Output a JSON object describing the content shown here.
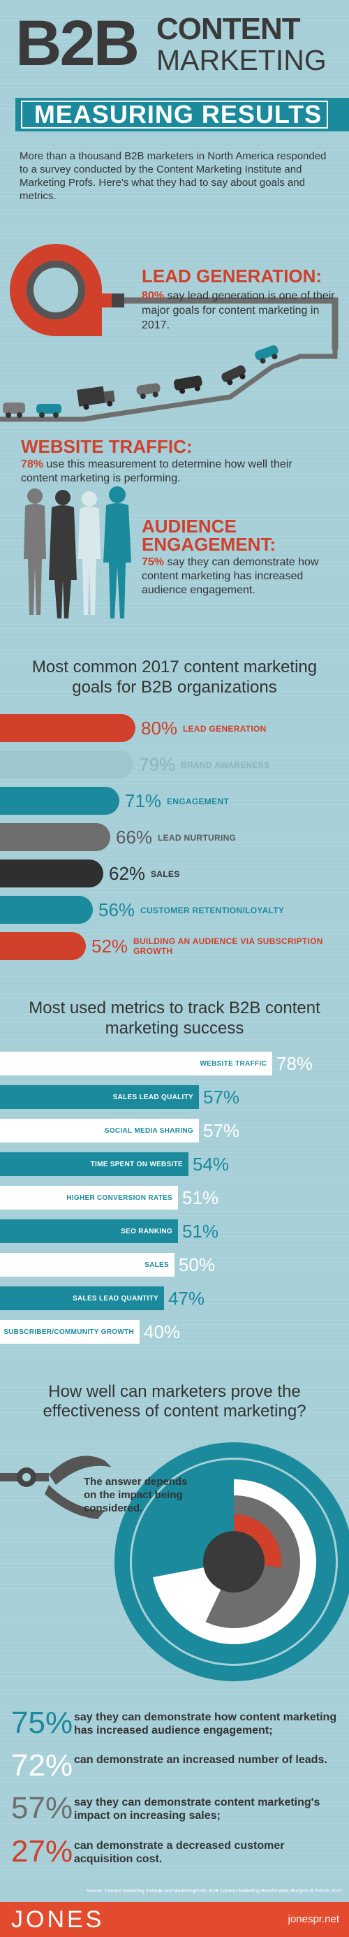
{
  "header": {
    "b2b": "B2B",
    "content": "CONTENT",
    "marketing": "MARKETING",
    "measuring": "MEASURING RESULTS",
    "intro": "More than a thousand B2B marketers in North America responded to a survey conducted by the Content Marketing Institute and Marketing Profs. Here's what they had to say about goals and metrics."
  },
  "lead": {
    "title": "LEAD GENERATION:",
    "pct": "80%",
    "text": " say lead generation is one of their major goals for content marketing in 2017."
  },
  "web": {
    "title": "WEBSITE TRAFFIC:",
    "pct": "78%",
    "text": " use this measurement to determine how well their content marketing is performing."
  },
  "audience": {
    "title": "AUDIENCE ENGAGEMENT:",
    "pct": "75%",
    "text": " say they can demonstrate how content marketing has increased audience engagement."
  },
  "goals_title": "Most common 2017 content marketing goals for B2B organizations",
  "metrics_title": "Most used metrics to track B2B content marketing success",
  "effectiveness": {
    "title": "How well can marketers prove the effectiveness of content marketing?",
    "depends": "The answer depends on the impact being considered."
  },
  "colors": {
    "red": "#d0402a",
    "light_teal": "#9dc7ce",
    "teal": "#1a8a9c",
    "gray": "#6e6e6e",
    "dark": "#2f2f2f",
    "orange_red": "#e24b2d"
  },
  "chart_data": [
    {
      "type": "bar",
      "title": "Most common 2017 content marketing goals for B2B organizations",
      "categories": [
        "LEAD GENERATION",
        "BRAND AWARENESS",
        "ENGAGEMENT",
        "LEAD NURTURING",
        "SALES",
        "CUSTOMER RETENTION/LOYALTY",
        "BUILDING AN AUDIENCE VIA SUBSCRIPTION GROWTH"
      ],
      "values": [
        80,
        79,
        71,
        66,
        62,
        56,
        52
      ],
      "labels": [
        "80%",
        "79%",
        "71%",
        "66%",
        "62%",
        "56%",
        "52%"
      ],
      "colors": [
        "#d0402a",
        "#9dc7ce",
        "#1a8a9c",
        "#6e6e6e",
        "#2f2f2f",
        "#1a8a9c",
        "#d0402a"
      ],
      "label_colors": [
        "#d0402a",
        "#8ab5bd",
        "#1a8a9c",
        "#5a5a5a",
        "#2f2f2f",
        "#1a8a9c",
        "#d0402a"
      ],
      "xlim": [
        0,
        100
      ]
    },
    {
      "type": "bar",
      "title": "Most used metrics to track B2B content marketing success",
      "categories": [
        "WEBSITE TRAFFIC",
        "SALES LEAD QUALITY",
        "SOCIAL MEDIA SHARING",
        "TIME SPENT ON WEBSITE",
        "HIGHER CONVERSION RATES",
        "SEO RANKING",
        "SALES",
        "SALES LEAD QUANTITY",
        "SUBSCRIBER/COMMUNITY GROWTH"
      ],
      "values": [
        78,
        57,
        57,
        54,
        51,
        51,
        50,
        47,
        40
      ],
      "labels": [
        "78%",
        "57%",
        "57%",
        "54%",
        "51%",
        "51%",
        "50%",
        "47%",
        "40%"
      ],
      "colors": [
        "#ffffff",
        "#1a8a9c",
        "#ffffff",
        "#1a8a9c",
        "#ffffff",
        "#1a8a9c",
        "#ffffff",
        "#1a8a9c",
        "#ffffff"
      ],
      "xlim": [
        0,
        100
      ]
    },
    {
      "type": "pie",
      "title": "How well can marketers prove the effectiveness of content marketing?",
      "categories": [
        "increased audience engagement",
        "increased number of leads",
        "impact on increasing sales",
        "decreased customer acquisition cost"
      ],
      "values": [
        75,
        72,
        57,
        27
      ],
      "labels": [
        "75%",
        "72%",
        "57%",
        "27%"
      ],
      "texts": [
        "say they can demonstrate how content marketing has increased audience engagement;",
        "can demonstrate an increased number of leads.",
        "say they can demonstrate content marketing's impact on increasing sales;",
        "can demonstrate a decreased customer acquisition cost."
      ],
      "colors": [
        "#1a8a9c",
        "#ffffff",
        "#6e6e6e",
        "#d0402a"
      ]
    }
  ],
  "footer": {
    "source": "Source: Content Marketing Institute and MarketingProfs, B2B Content Marketing Benchmarks, Budgets & Trends 2017",
    "brand": "JONES",
    "url": "jonespr.net"
  }
}
